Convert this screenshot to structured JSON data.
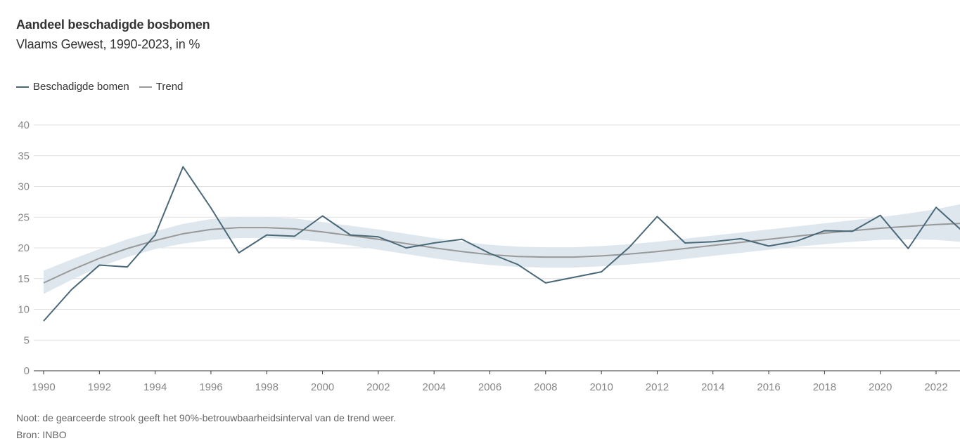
{
  "chart_data": {
    "type": "line",
    "title": "Aandeel beschadigde bosbomen",
    "subtitle": "Vlaams Gewest, 1990-2023, in %",
    "xlabel": "",
    "ylabel": "",
    "xlim": [
      1989.9,
      2022.8
    ],
    "ylim": [
      0,
      40
    ],
    "yticks": [
      0,
      5,
      10,
      15,
      20,
      25,
      30,
      35,
      40
    ],
    "xticks": [
      1990,
      1992,
      1994,
      1996,
      1998,
      2000,
      2002,
      2004,
      2006,
      2008,
      2010,
      2012,
      2014,
      2016,
      2018,
      2020,
      2022
    ],
    "grid": true,
    "legend_position": "top-left",
    "x": [
      1990,
      1991,
      1992,
      1993,
      1994,
      1995,
      1996,
      1997,
      1998,
      1999,
      2000,
      2001,
      2002,
      2003,
      2004,
      2005,
      2006,
      2007,
      2008,
      2009,
      2010,
      2011,
      2012,
      2013,
      2014,
      2015,
      2016,
      2017,
      2018,
      2019,
      2020,
      2021,
      2022,
      2023
    ],
    "series": [
      {
        "name": "Beschadigde bomen",
        "color": "#4a6878",
        "values": [
          8.1,
          13.2,
          17.2,
          16.9,
          22.1,
          33.2,
          26.5,
          19.2,
          22.1,
          21.9,
          25.2,
          22.1,
          21.8,
          20.0,
          20.8,
          21.4,
          19.1,
          17.3,
          14.3,
          15.2,
          16.1,
          20.1,
          25.1,
          20.8,
          21.0,
          21.5,
          20.3,
          21.1,
          22.8,
          22.7,
          25.3,
          19.9,
          26.6,
          22.5
        ]
      },
      {
        "name": "Trend",
        "color": "#999999",
        "values": [
          14.3,
          16.4,
          18.3,
          19.9,
          21.2,
          22.3,
          23.0,
          23.3,
          23.3,
          23.1,
          22.6,
          22.0,
          21.4,
          20.7,
          20.0,
          19.4,
          18.9,
          18.6,
          18.5,
          18.5,
          18.7,
          19.0,
          19.4,
          19.9,
          20.4,
          20.9,
          21.4,
          21.9,
          22.4,
          22.8,
          23.2,
          23.5,
          23.8,
          24.0
        ],
        "ci_lower": [
          12.5,
          14.8,
          16.9,
          18.5,
          19.8,
          20.7,
          21.3,
          21.6,
          21.6,
          21.4,
          21.0,
          20.4,
          19.7,
          19.0,
          18.3,
          17.7,
          17.2,
          16.9,
          16.8,
          16.8,
          17.0,
          17.3,
          17.7,
          18.2,
          18.7,
          19.2,
          19.7,
          20.2,
          20.6,
          21.0,
          21.3,
          21.4,
          21.3,
          21.0
        ],
        "ci_upper": [
          16.3,
          18.1,
          19.8,
          21.4,
          22.7,
          23.9,
          24.7,
          25.0,
          25.0,
          24.8,
          24.2,
          23.6,
          23.0,
          22.3,
          21.6,
          21.0,
          20.5,
          20.2,
          20.1,
          20.1,
          20.3,
          20.6,
          21.0,
          21.5,
          22.0,
          22.5,
          23.0,
          23.5,
          24.0,
          24.5,
          25.0,
          25.6,
          26.3,
          27.1
        ]
      }
    ],
    "ci_color": "#dde7ed"
  },
  "footer": {
    "note": "Noot: de gearceerde strook geeft het 90%-betrouwbaarheidsinterval van de trend weer.",
    "source": "Bron: INBO"
  }
}
